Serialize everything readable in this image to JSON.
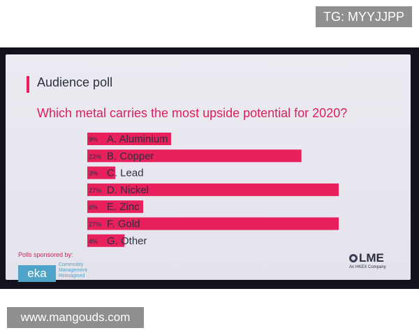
{
  "watermarks": {
    "top": "TG: MYYJJPP",
    "bottom": "www.mangouds.com"
  },
  "slide": {
    "title": "Audience poll",
    "question": "Which metal carries the most upside potential for 2020?",
    "sponsor_label": "Polls sponsored by:",
    "sponsor_logo": "eka",
    "sponsor_tagline": [
      "Commodity",
      "Management",
      "Reimagined"
    ],
    "lme_logo": "LME",
    "lme_sub": "An HKEX Company"
  },
  "colors": {
    "accent": "#e8205c",
    "text_dark": "#2b2f40",
    "eka_blue": "#4ea3c9"
  },
  "chart_data": {
    "type": "bar",
    "orientation": "horizontal",
    "title": "Which metal carries the most upside potential for 2020?",
    "categories": [
      "A. Aluminium",
      "B. Copper",
      "C. Lead",
      "D. Nickel",
      "E. Zinc",
      "F. Gold",
      "G. Other"
    ],
    "values": [
      9,
      23,
      3,
      27,
      6,
      27,
      4
    ],
    "value_labels": [
      "9%",
      "23%",
      "3%",
      "27%",
      "6%",
      "27%",
      "4%"
    ],
    "units": "%",
    "xlim": [
      0,
      27
    ]
  }
}
